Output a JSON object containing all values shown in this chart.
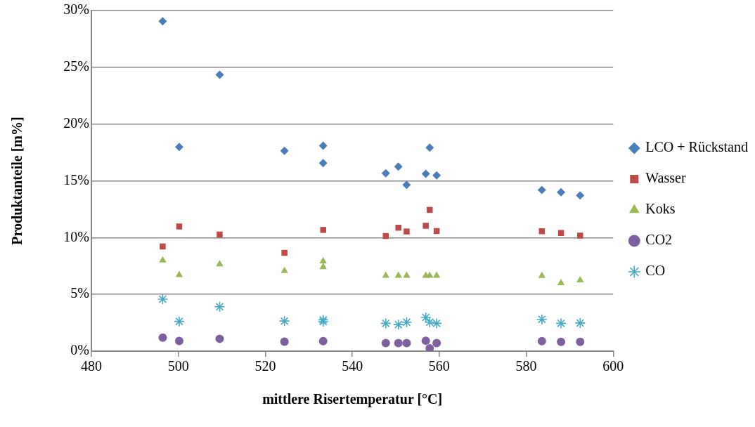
{
  "chart_data": {
    "type": "scatter",
    "xlabel": "mittlere Risertemperatur [°C]",
    "ylabel": "Produktanteile [m%]",
    "x": [
      496.4,
      500.2,
      509.5,
      524.4,
      533.3,
      533.3,
      547.7,
      550.6,
      552.5,
      556.9,
      557.8,
      559.4,
      583.6,
      588,
      592.4
    ],
    "series": [
      {
        "name": "LCO + Rückstand",
        "color": "#4a7ebb",
        "marker": "diamond",
        "values": [
          29.05,
          17.99,
          24.34,
          17.65,
          18.09,
          16.56,
          15.66,
          16.25,
          14.64,
          15.62,
          17.92,
          15.48,
          14.2,
          14.0,
          13.72
        ]
      },
      {
        "name": "Wasser",
        "color": "#be4b48",
        "marker": "square",
        "values": [
          9.22,
          10.98,
          10.27,
          8.66,
          10.68,
          null,
          10.14,
          10.87,
          10.54,
          11.04,
          12.44,
          10.58,
          10.56,
          10.4,
          10.18
        ]
      },
      {
        "name": "Koks",
        "color": "#98b954",
        "marker": "triangle",
        "values": [
          7.99,
          6.71,
          7.65,
          7.07,
          7.92,
          7.4,
          6.65,
          6.65,
          6.65,
          6.65,
          6.65,
          6.65,
          6.63,
          6.0,
          6.25
        ]
      },
      {
        "name": "CO2",
        "color": "#7d60a0",
        "marker": "circle",
        "values": [
          1.19,
          0.9,
          1.09,
          0.83,
          0.88,
          null,
          0.71,
          0.71,
          0.71,
          0.92,
          0.25,
          0.71,
          0.88,
          0.82,
          0.82
        ]
      },
      {
        "name": "CO",
        "color": "#46aac5",
        "marker": "cross",
        "values": [
          4.58,
          2.62,
          3.91,
          2.65,
          2.75,
          2.6,
          2.45,
          2.34,
          2.55,
          2.97,
          2.55,
          2.45,
          2.8,
          2.45,
          2.48
        ]
      }
    ],
    "xlim": [
      480,
      600
    ],
    "xticks": [
      480,
      500,
      520,
      540,
      560,
      580,
      600
    ],
    "ylim": [
      0,
      30
    ],
    "yticks": [
      {
        "value": 0,
        "label": "0%"
      },
      {
        "value": 5,
        "label": "5%"
      },
      {
        "value": 10,
        "label": "10%"
      },
      {
        "value": 15,
        "label": "15%"
      },
      {
        "value": 20,
        "label": "20%"
      },
      {
        "value": 25,
        "label": "25%"
      },
      {
        "value": 30,
        "label": "30%"
      }
    ],
    "grid": "y",
    "legend": "right"
  }
}
